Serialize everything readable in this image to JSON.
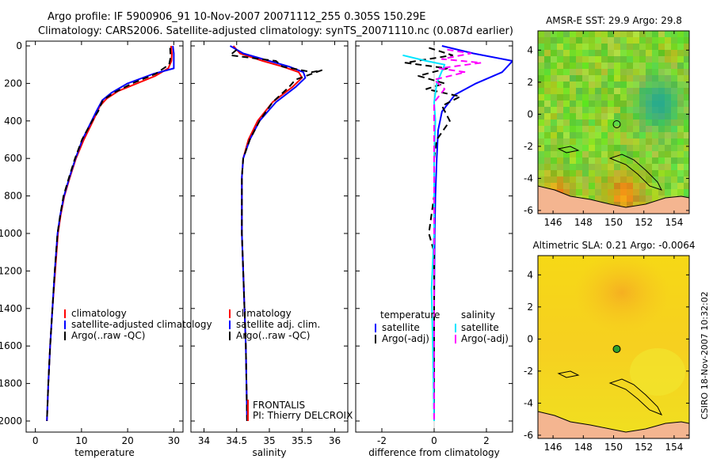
{
  "header": {
    "title_line1": "Argo profile: IF 5900906_91 10-Nov-2007 20071112_255 0.305S 150.29E",
    "title_line2": "Climatology: CARS2006. Satellite-adjusted climatology: synTS_20071110.nc (0.087d earlier)"
  },
  "side_label": "CSIRO 18-Nov-2007 10:32:02",
  "colors": {
    "climatology": "#ff0000",
    "satellite": "#0000ff",
    "argo": "#000000",
    "salinity_satellite": "#00e5ff",
    "salinity_argo": "#ff00ff",
    "land": "#f4b590",
    "marker_sst": "#2e8b2e",
    "marker_sla": "#2ea02e"
  },
  "chart_data": [
    {
      "id": "temperature",
      "type": "line",
      "xlabel": "temperature",
      "ylabel": "",
      "xlim": [
        -2,
        32
      ],
      "ylim": [
        2050,
        0
      ],
      "y_reversed": true,
      "xticks": [
        0,
        10,
        20,
        30
      ],
      "yticks": [
        0,
        200,
        400,
        600,
        800,
        1000,
        1200,
        1400,
        1600,
        1800,
        2000
      ],
      "legend": [
        "climatology",
        "satellite-adjusted climatology",
        "Argo(..raw -QC)"
      ],
      "series": [
        {
          "name": "climatology",
          "color": "#ff0000",
          "dash": "",
          "points": [
            [
              29.4,
              0
            ],
            [
              29.6,
              40
            ],
            [
              29.5,
              80
            ],
            [
              28.8,
              120
            ],
            [
              26,
              160
            ],
            [
              22,
              200
            ],
            [
              18,
              240
            ],
            [
              15.5,
              280
            ],
            [
              14,
              320
            ],
            [
              12.5,
              400
            ],
            [
              10.5,
              500
            ],
            [
              8.8,
              600
            ],
            [
              7.5,
              700
            ],
            [
              6.3,
              800
            ],
            [
              5.5,
              900
            ],
            [
              4.9,
              1000
            ],
            [
              4.3,
              1200
            ],
            [
              3.7,
              1400
            ],
            [
              3.2,
              1600
            ],
            [
              2.8,
              1800
            ],
            [
              2.5,
              2000
            ]
          ]
        },
        {
          "name": "satellite-adjusted climatology",
          "color": "#0000ff",
          "dash": "",
          "points": [
            [
              29.8,
              0
            ],
            [
              30,
              40
            ],
            [
              30,
              80
            ],
            [
              30,
              120
            ],
            [
              25.5,
              150
            ],
            [
              20,
              200
            ],
            [
              16.5,
              250
            ],
            [
              14.5,
              290
            ],
            [
              13.2,
              350
            ],
            [
              12.2,
              400
            ],
            [
              10.2,
              500
            ],
            [
              8.7,
              600
            ],
            [
              7.4,
              700
            ],
            [
              6.2,
              800
            ],
            [
              5.4,
              900
            ],
            [
              4.8,
              1000
            ],
            [
              4.2,
              1200
            ],
            [
              3.7,
              1400
            ],
            [
              3.2,
              1600
            ],
            [
              2.8,
              1800
            ],
            [
              2.5,
              2000
            ]
          ]
        },
        {
          "name": "Argo(..raw -QC)",
          "color": "#000000",
          "dash": "8,5",
          "points": [
            [
              29.2,
              10
            ],
            [
              29.3,
              60
            ],
            [
              29,
              100
            ],
            [
              26,
              150
            ],
            [
              21,
              200
            ],
            [
              17,
              250
            ],
            [
              14.6,
              290
            ],
            [
              13.6,
              350
            ],
            [
              12.3,
              400
            ],
            [
              10.1,
              500
            ],
            [
              8.6,
              600
            ],
            [
              7.3,
              700
            ],
            [
              6.1,
              800
            ],
            [
              5.4,
              900
            ],
            [
              4.8,
              1000
            ],
            [
              4.2,
              1200
            ],
            [
              3.7,
              1400
            ],
            [
              3.2,
              1600
            ],
            [
              2.8,
              1800
            ],
            [
              2.5,
              2000
            ]
          ]
        }
      ]
    },
    {
      "id": "salinity",
      "type": "line",
      "xlabel": "salinity",
      "ylabel": "",
      "xlim": [
        33.8,
        36.2
      ],
      "ylim": [
        2050,
        0
      ],
      "y_reversed": true,
      "xticks": [
        34,
        34.5,
        35,
        35.5,
        36
      ],
      "legend": [
        "climatology",
        "satellite adj. clim.",
        "Argo(..raw -QC)"
      ],
      "annotation": [
        "FRONTALIS",
        "PI: Thierry DELCROIX"
      ],
      "series": [
        {
          "name": "climatology",
          "color": "#ff0000",
          "dash": "",
          "points": [
            [
              34.45,
              0
            ],
            [
              34.55,
              40
            ],
            [
              34.9,
              80
            ],
            [
              35.2,
              110
            ],
            [
              35.45,
              140
            ],
            [
              35.5,
              170
            ],
            [
              35.35,
              220
            ],
            [
              35.05,
              300
            ],
            [
              34.82,
              400
            ],
            [
              34.68,
              500
            ],
            [
              34.6,
              600
            ],
            [
              34.58,
              700
            ],
            [
              34.58,
              800
            ],
            [
              34.58,
              1000
            ],
            [
              34.6,
              1200
            ],
            [
              34.62,
              1400
            ],
            [
              34.64,
              1600
            ],
            [
              34.65,
              1800
            ],
            [
              34.66,
              2000
            ]
          ]
        },
        {
          "name": "satellite adj. clim.",
          "color": "#0000ff",
          "dash": "",
          "points": [
            [
              34.4,
              0
            ],
            [
              34.6,
              40
            ],
            [
              35,
              80
            ],
            [
              35.3,
              110
            ],
            [
              35.52,
              140
            ],
            [
              35.55,
              170
            ],
            [
              35.4,
              220
            ],
            [
              35.1,
              300
            ],
            [
              34.85,
              400
            ],
            [
              34.7,
              500
            ],
            [
              34.6,
              600
            ],
            [
              34.58,
              700
            ],
            [
              34.58,
              800
            ],
            [
              34.58,
              1000
            ],
            [
              34.6,
              1200
            ],
            [
              34.62,
              1400
            ],
            [
              34.64,
              1600
            ],
            [
              34.65,
              1800
            ],
            [
              34.66,
              2000
            ]
          ]
        },
        {
          "name": "Argo(..raw -QC)",
          "color": "#000000",
          "dash": "8,5",
          "points": [
            [
              34.5,
              20
            ],
            [
              34.4,
              50
            ],
            [
              35.1,
              80
            ],
            [
              35.2,
              110
            ],
            [
              35.65,
              140
            ],
            [
              35.8,
              130
            ],
            [
              35.4,
              180
            ],
            [
              35.3,
              220
            ],
            [
              35.05,
              300
            ],
            [
              34.85,
              400
            ],
            [
              34.7,
              500
            ],
            [
              34.6,
              600
            ],
            [
              34.58,
              700
            ],
            [
              34.58,
              800
            ],
            [
              34.58,
              1000
            ],
            [
              34.6,
              1200
            ],
            [
              34.62,
              1400
            ],
            [
              34.64,
              1600
            ],
            [
              34.65,
              1800
            ],
            [
              34.66,
              2000
            ]
          ]
        }
      ]
    },
    {
      "id": "difference",
      "type": "line",
      "xlabel": "difference from climatology",
      "ylabel": "",
      "xlim": [
        -3,
        3
      ],
      "ylim": [
        2050,
        0
      ],
      "y_reversed": true,
      "xticks": [
        -2,
        0,
        2
      ],
      "legend_left_title": "temperature",
      "legend_right_title": "salinity",
      "legend_left": [
        "satellite",
        "Argo(-adj)"
      ],
      "legend_right": [
        "satellite",
        "Argo(-adj)"
      ],
      "series": [
        {
          "name": "temperature satellite",
          "color": "#0000ff",
          "dash": "",
          "points": [
            [
              0.3,
              0
            ],
            [
              1.5,
              40
            ],
            [
              3,
              80
            ],
            [
              2.6,
              140
            ],
            [
              1.6,
              200
            ],
            [
              0.8,
              260
            ],
            [
              0.3,
              350
            ],
            [
              0.15,
              450
            ],
            [
              0.1,
              600
            ],
            [
              0.05,
              800
            ],
            [
              0.02,
              1000
            ],
            [
              0,
              1400
            ],
            [
              0,
              2000
            ]
          ]
        },
        {
          "name": "temperature Argo(-adj)",
          "color": "#000000",
          "dash": "8,5",
          "points": [
            [
              -0.2,
              10
            ],
            [
              0.7,
              50
            ],
            [
              -1.1,
              90
            ],
            [
              0.5,
              120
            ],
            [
              -0.6,
              160
            ],
            [
              0.4,
              200
            ],
            [
              -0.3,
              230
            ],
            [
              1,
              270
            ],
            [
              0.3,
              320
            ],
            [
              0.6,
              400
            ],
            [
              0.1,
              500
            ],
            [
              0,
              600
            ],
            [
              0,
              800
            ],
            [
              -0.15,
              950
            ],
            [
              -0.2,
              1000
            ],
            [
              0,
              1100
            ],
            [
              0,
              2000
            ]
          ]
        },
        {
          "name": "salinity satellite",
          "color": "#00e5ff",
          "dash": "",
          "points": [
            [
              -1.2,
              50
            ],
            [
              -0.3,
              80
            ],
            [
              0.4,
              100
            ],
            [
              0.1,
              200
            ],
            [
              0,
              300
            ],
            [
              0.05,
              400
            ],
            [
              0,
              600
            ],
            [
              0,
              1000
            ],
            [
              -0.1,
              1300
            ],
            [
              -0.05,
              1600
            ],
            [
              0,
              2000
            ]
          ]
        },
        {
          "name": "salinity Argo(-adj)",
          "color": "#ff00ff",
          "dash": "8,5",
          "points": [
            [
              0.5,
              20
            ],
            [
              1.4,
              40
            ],
            [
              0.3,
              70
            ],
            [
              1.8,
              90
            ],
            [
              0.2,
              120
            ],
            [
              1.2,
              140
            ],
            [
              0,
              180
            ],
            [
              0.4,
              230
            ],
            [
              0,
              300
            ],
            [
              0,
              400
            ],
            [
              0,
              600
            ],
            [
              0,
              2000
            ]
          ]
        }
      ]
    },
    {
      "id": "sst_map",
      "type": "heatmap",
      "title": "AMSR-E SST: 29.9 Argo: 29.8",
      "xlim": [
        145,
        155
      ],
      "ylim": [
        -6.2,
        5.2
      ],
      "xticks": [
        146,
        148,
        150,
        152,
        154
      ],
      "yticks": [
        -6,
        -4,
        -2,
        0,
        2,
        4
      ],
      "marker": [
        150.29,
        -0.305
      ]
    },
    {
      "id": "sla_map",
      "type": "heatmap",
      "title": "Altimetric SLA: 0.21 Argo: -0.0064",
      "xlim": [
        145,
        155
      ],
      "ylim": [
        -6.2,
        5.2
      ],
      "xticks": [
        146,
        148,
        150,
        152,
        154
      ],
      "yticks": [
        -6,
        -4,
        -2,
        0,
        2,
        4
      ],
      "marker": [
        150.29,
        -0.305
      ]
    }
  ]
}
